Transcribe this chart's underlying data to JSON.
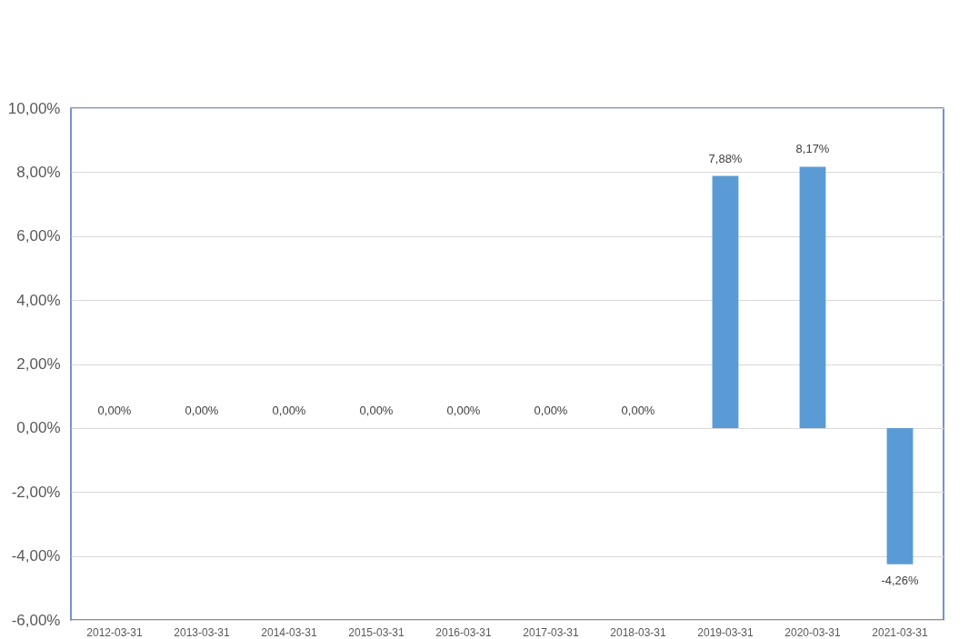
{
  "chart_data": {
    "type": "bar",
    "categories": [
      "2012-03-31",
      "2013-03-31",
      "2014-03-31",
      "2015-03-31",
      "2016-03-31",
      "2017-03-31",
      "2018-03-31",
      "2019-03-31",
      "2020-03-31",
      "2021-03-31"
    ],
    "values": [
      0,
      0,
      0,
      0,
      0,
      0,
      0,
      7.88,
      8.17,
      -4.26
    ],
    "value_labels": [
      "0,00%",
      "0,00%",
      "0,00%",
      "0,00%",
      "0,00%",
      "0,00%",
      "0,00%",
      "7,88%",
      "8,17%",
      "-4,26%"
    ],
    "color": "#5b9bd5",
    "ylim": [
      -6,
      10
    ],
    "yticks": [
      {
        "value": -6,
        "label": "-6,00%"
      },
      {
        "value": -4,
        "label": "-4,00%"
      },
      {
        "value": -2,
        "label": "-2,00%"
      },
      {
        "value": 0,
        "label": "0,00%"
      },
      {
        "value": 2,
        "label": "2,00%"
      },
      {
        "value": 4,
        "label": "4,00%"
      },
      {
        "value": 6,
        "label": "6,00%"
      },
      {
        "value": 8,
        "label": "8,00%"
      },
      {
        "value": 10,
        "label": "10,00%"
      }
    ],
    "grid": "y"
  }
}
